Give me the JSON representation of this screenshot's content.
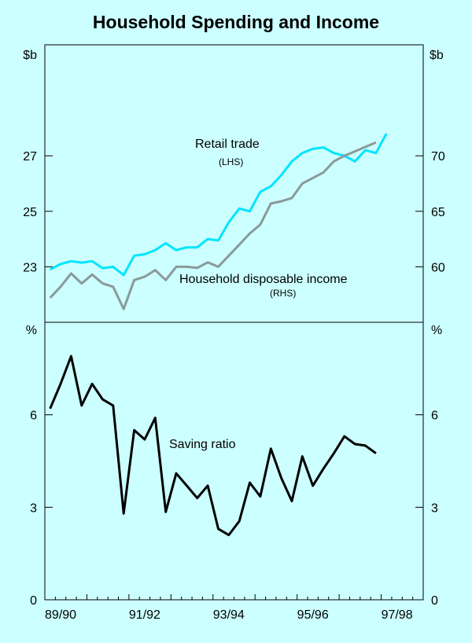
{
  "chart_data": [
    {
      "type": "line",
      "title": "Household Spending and Income",
      "left_unit": "$b",
      "right_unit": "$b",
      "left_ylim": [
        21,
        31
      ],
      "right_ylim": [
        55,
        80
      ],
      "left_ticks": [
        "23",
        "25",
        "27"
      ],
      "left_tick_values": [
        23,
        25,
        27
      ],
      "right_ticks": [
        "60",
        "65",
        "70"
      ],
      "right_tick_values": [
        60,
        65,
        70
      ],
      "x_index_range": [
        0,
        36
      ],
      "series": [
        {
          "name": "Retail trade",
          "axis": "LHS",
          "label": "Retail trade",
          "axis_label": "(LHS)",
          "color": "#00e5ff",
          "values": [
            22.9,
            23.1,
            23.2,
            23.15,
            23.2,
            22.95,
            23.0,
            22.7,
            23.4,
            23.45,
            23.6,
            23.85,
            23.6,
            23.7,
            23.7,
            24.0,
            23.95,
            24.6,
            25.1,
            25.0,
            25.7,
            25.9,
            26.3,
            26.8,
            27.1,
            27.25,
            27.3,
            27.1,
            27.0,
            26.8,
            27.2,
            27.1,
            27.8
          ]
        },
        {
          "name": "Household disposable income",
          "axis": "RHS",
          "label": "Household disposable income",
          "axis_label": "(RHS)",
          "color": "#8a9a9a",
          "values": [
            57.2,
            58.2,
            59.4,
            58.5,
            59.3,
            58.5,
            58.2,
            56.2,
            58.8,
            59.1,
            59.7,
            58.8,
            60.0,
            60.0,
            59.9,
            60.4,
            60.0,
            61.0,
            62.0,
            63.0,
            63.8,
            65.7,
            65.9,
            66.2,
            67.5,
            68.0,
            68.5,
            69.5,
            70.0,
            70.4,
            70.8,
            71.2
          ]
        }
      ]
    },
    {
      "type": "line",
      "unit": "%",
      "ylim": [
        0,
        9
      ],
      "ticks": [
        "0",
        "3",
        "6"
      ],
      "tick_values": [
        0,
        3,
        6
      ],
      "x_index_range": [
        0,
        36
      ],
      "x_tick_labels": [
        "89/90",
        "91/92",
        "93/94",
        "95/96",
        "97/98"
      ],
      "x_tick_index": [
        1.5,
        9.5,
        17.5,
        25.5,
        33.5
      ],
      "series": [
        {
          "name": "Saving ratio",
          "label": "Saving ratio",
          "color": "#000000",
          "values": [
            6.2,
            7.0,
            7.9,
            6.3,
            7.0,
            6.5,
            6.3,
            2.8,
            5.5,
            5.2,
            5.9,
            2.85,
            4.1,
            3.7,
            3.3,
            3.7,
            2.3,
            2.1,
            2.55,
            3.8,
            3.35,
            4.9,
            3.95,
            3.2,
            4.65,
            3.7,
            4.25,
            4.75,
            5.3,
            5.05,
            5.0,
            4.75
          ]
        }
      ]
    }
  ]
}
